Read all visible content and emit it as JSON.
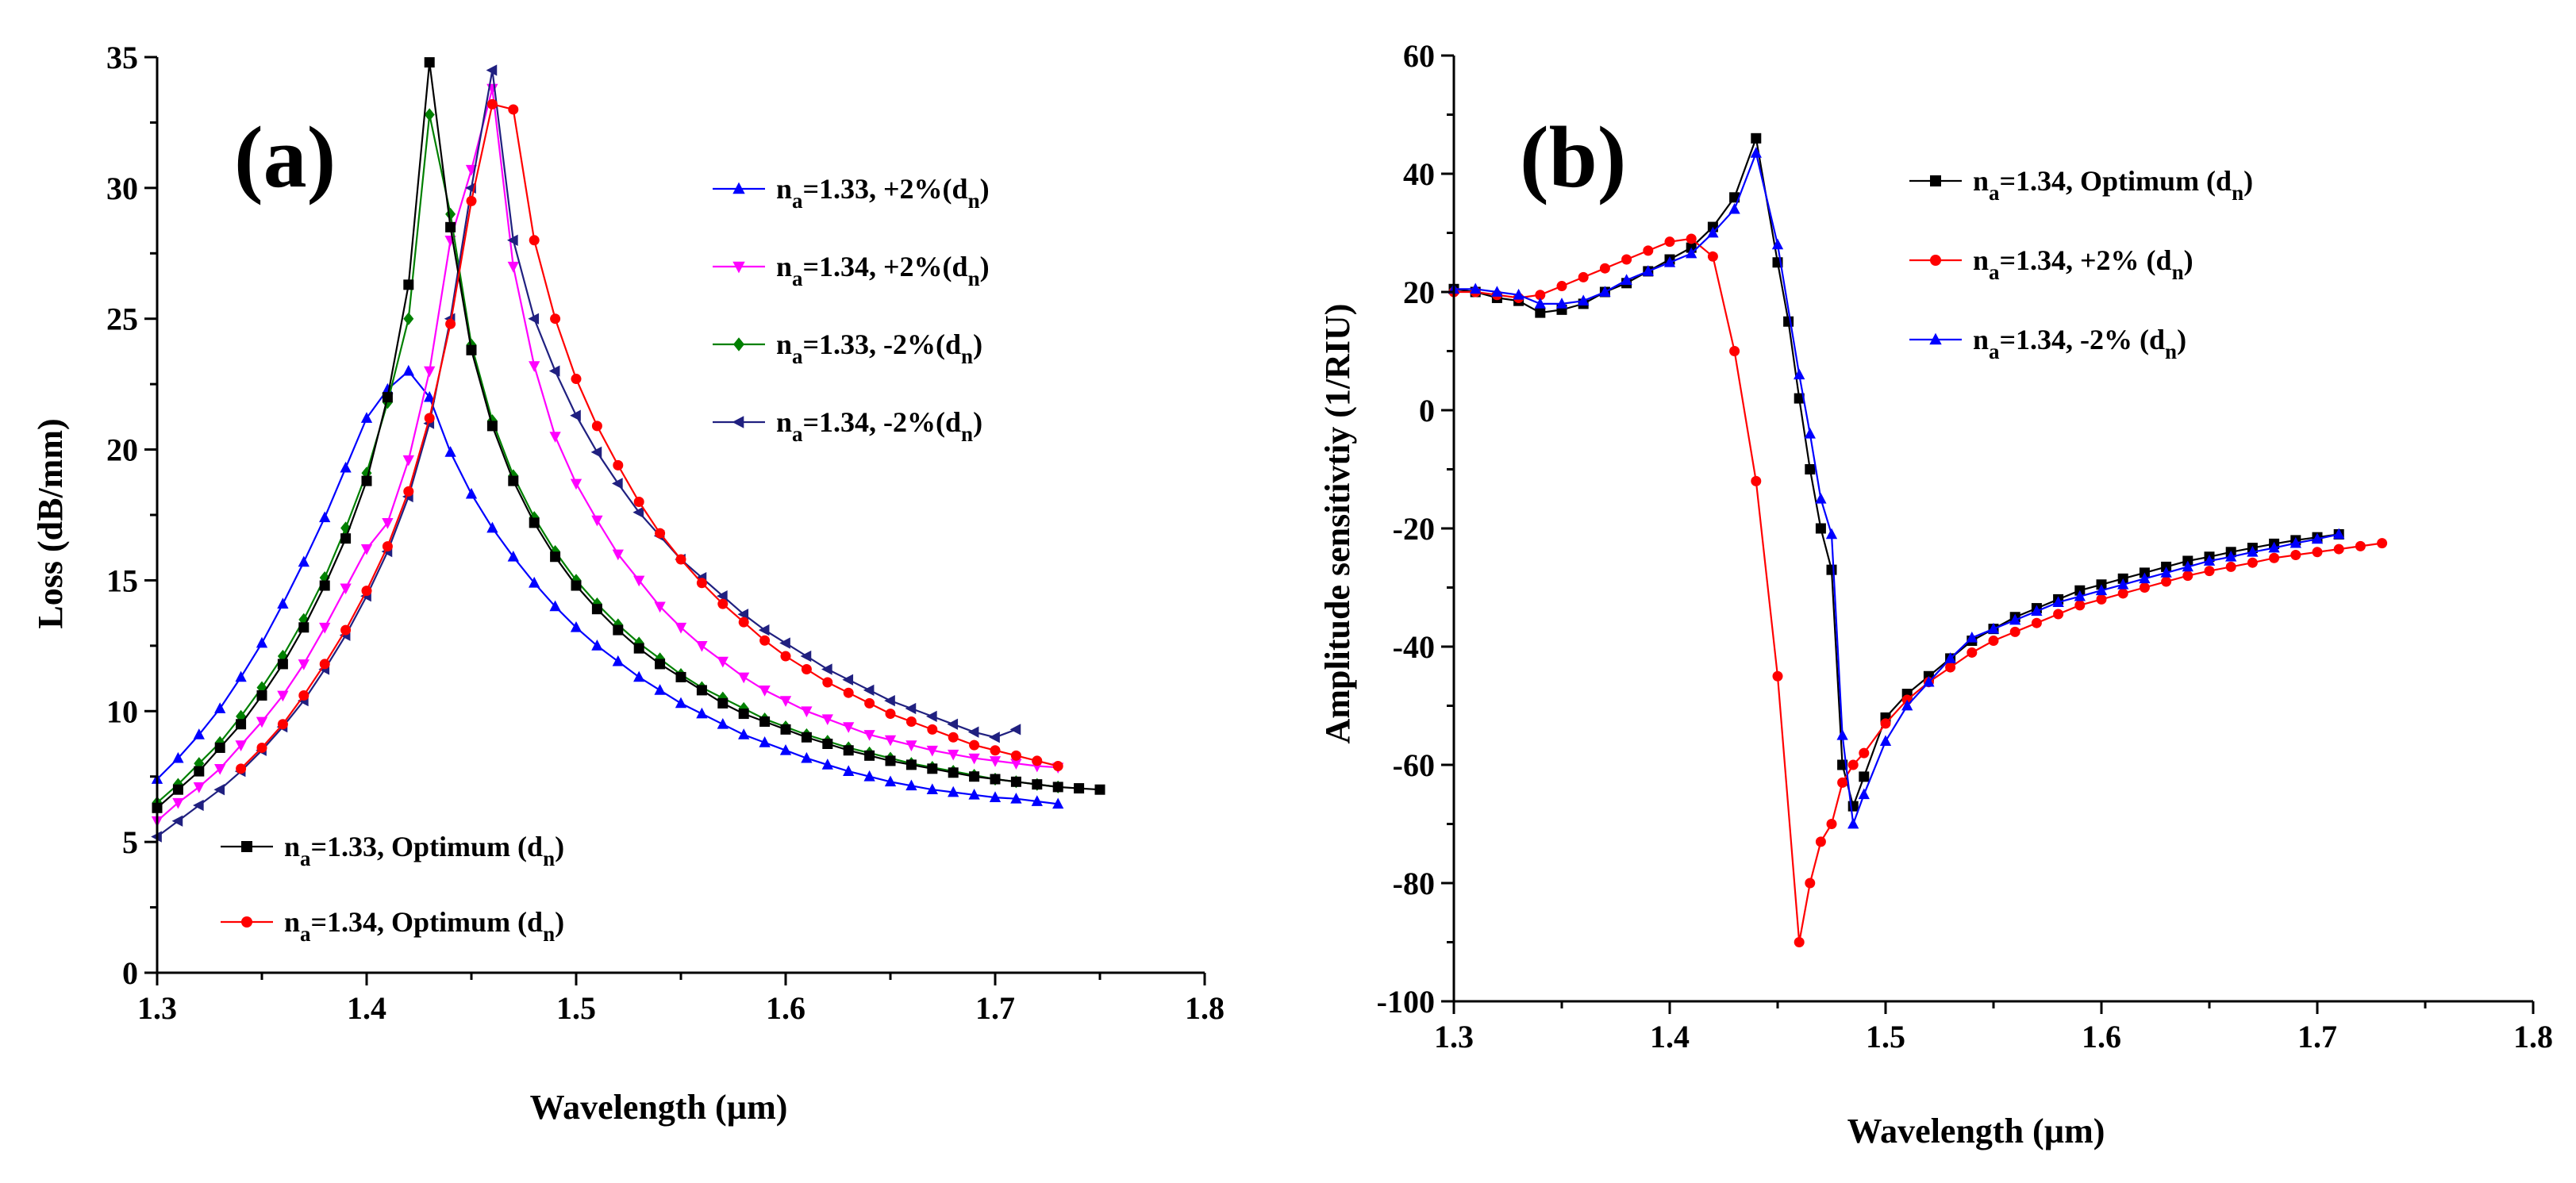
{
  "chart_data": [
    {
      "type": "line",
      "panel_label": "(a)",
      "xlabel": "Wavelength (µm)",
      "ylabel": "Loss (dB/mm)",
      "xlim": [
        1.3,
        1.8
      ],
      "ylim": [
        0,
        35
      ],
      "xticks": [
        1.3,
        1.4,
        1.5,
        1.6,
        1.7,
        1.8
      ],
      "xtick_labels": [
        "1.3",
        "1.4",
        "1.5",
        "1.6",
        "1.7",
        "1.8"
      ],
      "yticks": [
        0,
        5,
        10,
        15,
        20,
        25,
        30,
        35
      ],
      "ytick_labels": [
        "0",
        "5",
        "10",
        "15",
        "20",
        "25",
        "30",
        "35"
      ],
      "legend_top_location": "top-right",
      "legend_bottom_location": "bottom-left",
      "series": [
        {
          "name": "n_a=1.33, +2%(d_n)",
          "legend": {
            "pre": "n",
            "sub1": "a",
            "mid": "=1.33, +2%(d",
            "sub2": "n",
            "post": ")"
          },
          "color": "#0000ff",
          "marker": "triangle-up",
          "legend_group": "top",
          "x": [
            1.3,
            1.31,
            1.32,
            1.33,
            1.34,
            1.35,
            1.36,
            1.37,
            1.38,
            1.39,
            1.4,
            1.41,
            1.42,
            1.43,
            1.44,
            1.45,
            1.46,
            1.47,
            1.48,
            1.49,
            1.5,
            1.51,
            1.52,
            1.53,
            1.54,
            1.55,
            1.56,
            1.57,
            1.58,
            1.59,
            1.6,
            1.61,
            1.62,
            1.63,
            1.64,
            1.65,
            1.66,
            1.67,
            1.68,
            1.69,
            1.7,
            1.71,
            1.72,
            1.73
          ],
          "y": [
            7.4,
            8.2,
            9.1,
            10.1,
            11.3,
            12.6,
            14.1,
            15.7,
            17.4,
            19.3,
            21.2,
            22.3,
            23.0,
            22.0,
            19.9,
            18.3,
            17.0,
            15.9,
            14.9,
            14.0,
            13.2,
            12.5,
            11.9,
            11.3,
            10.8,
            10.3,
            9.9,
            9.5,
            9.1,
            8.8,
            8.5,
            8.2,
            7.95,
            7.7,
            7.5,
            7.3,
            7.15,
            7.0,
            6.9,
            6.8,
            6.7,
            6.65,
            6.55,
            6.45
          ]
        },
        {
          "name": "n_a=1.34, +2%(d_n)",
          "legend": {
            "pre": "n",
            "sub1": "a",
            "mid": "=1.34, +2%(d",
            "sub2": "n",
            "post": ")"
          },
          "color": "#ff00ff",
          "marker": "triangle-down",
          "legend_group": "top",
          "x": [
            1.3,
            1.31,
            1.32,
            1.33,
            1.34,
            1.35,
            1.36,
            1.37,
            1.38,
            1.39,
            1.4,
            1.41,
            1.42,
            1.43,
            1.44,
            1.45,
            1.46,
            1.47,
            1.48,
            1.49,
            1.5,
            1.51,
            1.52,
            1.53,
            1.54,
            1.55,
            1.56,
            1.57,
            1.58,
            1.59,
            1.6,
            1.61,
            1.62,
            1.63,
            1.64,
            1.65,
            1.66,
            1.67,
            1.68,
            1.69,
            1.7,
            1.71,
            1.72,
            1.73
          ],
          "y": [
            5.8,
            6.5,
            7.1,
            7.8,
            8.7,
            9.6,
            10.6,
            11.8,
            13.2,
            14.7,
            16.2,
            17.2,
            19.6,
            23.0,
            28.0,
            30.7,
            33.8,
            27.0,
            23.2,
            20.5,
            18.7,
            17.3,
            16.0,
            15.0,
            14.0,
            13.2,
            12.5,
            11.9,
            11.3,
            10.8,
            10.4,
            10.0,
            9.7,
            9.4,
            9.1,
            8.9,
            8.7,
            8.5,
            8.35,
            8.2,
            8.1,
            8.0,
            7.9,
            7.85
          ]
        },
        {
          "name": "n_a=1.33, -2%(d_n)",
          "legend": {
            "pre": "n",
            "sub1": "a",
            "mid": "=1.33, -2%(d",
            "sub2": "n",
            "post": ")"
          },
          "color": "#008000",
          "marker": "diamond",
          "legend_group": "top",
          "x": [
            1.3,
            1.31,
            1.32,
            1.33,
            1.34,
            1.35,
            1.36,
            1.37,
            1.38,
            1.39,
            1.4,
            1.41,
            1.42,
            1.43,
            1.44,
            1.45,
            1.46,
            1.47,
            1.48,
            1.49,
            1.5,
            1.51,
            1.52,
            1.53,
            1.54,
            1.55,
            1.56,
            1.57,
            1.58,
            1.59,
            1.6,
            1.61,
            1.62,
            1.63,
            1.64,
            1.65,
            1.66,
            1.67,
            1.68,
            1.69,
            1.7,
            1.71,
            1.72,
            1.73
          ],
          "y": [
            6.5,
            7.2,
            8.0,
            8.8,
            9.8,
            10.9,
            12.1,
            13.5,
            15.1,
            17.0,
            19.1,
            21.8,
            25.0,
            32.8,
            29.0,
            24.0,
            21.1,
            19.0,
            17.4,
            16.1,
            15.0,
            14.1,
            13.3,
            12.6,
            12.0,
            11.4,
            10.9,
            10.5,
            10.1,
            9.7,
            9.4,
            9.1,
            8.85,
            8.6,
            8.4,
            8.2,
            8.0,
            7.85,
            7.7,
            7.55,
            7.4,
            7.3,
            7.2,
            7.1
          ]
        },
        {
          "name": "n_a=1.34, -2%(d_n)",
          "legend": {
            "pre": "n",
            "sub1": "a",
            "mid": "=1.34, -2%(d",
            "sub2": "n",
            "post": ")"
          },
          "color": "#202080",
          "marker": "triangle-left",
          "legend_group": "top",
          "x": [
            1.3,
            1.31,
            1.32,
            1.33,
            1.34,
            1.35,
            1.36,
            1.37,
            1.38,
            1.39,
            1.4,
            1.41,
            1.42,
            1.43,
            1.44,
            1.45,
            1.46,
            1.47,
            1.48,
            1.49,
            1.5,
            1.51,
            1.52,
            1.53,
            1.54,
            1.55,
            1.56,
            1.57,
            1.58,
            1.59,
            1.6,
            1.61,
            1.62,
            1.63,
            1.64,
            1.65,
            1.66,
            1.67,
            1.68,
            1.69,
            1.7,
            1.71
          ],
          "y": [
            5.2,
            5.8,
            6.4,
            7.0,
            7.7,
            8.5,
            9.4,
            10.4,
            11.6,
            12.9,
            14.4,
            16.1,
            18.2,
            21.0,
            25.0,
            30.0,
            34.5,
            28.0,
            25.0,
            23.0,
            21.3,
            19.9,
            18.7,
            17.6,
            16.7,
            15.8,
            15.1,
            14.4,
            13.7,
            13.1,
            12.6,
            12.1,
            11.6,
            11.2,
            10.8,
            10.4,
            10.1,
            9.8,
            9.5,
            9.2,
            9.0,
            9.3
          ]
        },
        {
          "name": "n_a=1.33, Optimum (d_n)",
          "legend": {
            "pre": "n",
            "sub1": "a",
            "mid": "=1.33, Optimum (d",
            "sub2": "n",
            "post": ")"
          },
          "color": "#000000",
          "marker": "square",
          "legend_group": "bottom",
          "x": [
            1.3,
            1.31,
            1.32,
            1.33,
            1.34,
            1.35,
            1.36,
            1.37,
            1.38,
            1.39,
            1.4,
            1.41,
            1.42,
            1.43,
            1.44,
            1.45,
            1.46,
            1.47,
            1.48,
            1.49,
            1.5,
            1.51,
            1.52,
            1.53,
            1.54,
            1.55,
            1.56,
            1.57,
            1.58,
            1.59,
            1.6,
            1.61,
            1.62,
            1.63,
            1.64,
            1.65,
            1.66,
            1.67,
            1.68,
            1.69,
            1.7,
            1.71,
            1.72,
            1.73,
            1.74,
            1.75
          ],
          "y": [
            6.3,
            7.0,
            7.7,
            8.6,
            9.5,
            10.6,
            11.8,
            13.2,
            14.8,
            16.6,
            18.8,
            22.0,
            26.3,
            34.8,
            28.5,
            23.8,
            20.9,
            18.8,
            17.2,
            15.9,
            14.8,
            13.9,
            13.1,
            12.4,
            11.8,
            11.3,
            10.8,
            10.3,
            9.9,
            9.6,
            9.3,
            9.0,
            8.75,
            8.5,
            8.3,
            8.1,
            7.95,
            7.8,
            7.65,
            7.5,
            7.4,
            7.3,
            7.2,
            7.1,
            7.05,
            7.0
          ]
        },
        {
          "name": "n_a=1.34, Optimum (d_n)",
          "legend": {
            "pre": "n",
            "sub1": "a",
            "mid": "=1.34, Optimum (d",
            "sub2": "n",
            "post": ")"
          },
          "color": "#ff0000",
          "marker": "circle",
          "legend_group": "bottom",
          "x": [
            1.34,
            1.35,
            1.36,
            1.37,
            1.38,
            1.39,
            1.4,
            1.41,
            1.42,
            1.43,
            1.44,
            1.45,
            1.46,
            1.47,
            1.48,
            1.49,
            1.5,
            1.51,
            1.52,
            1.53,
            1.54,
            1.55,
            1.56,
            1.57,
            1.58,
            1.59,
            1.6,
            1.61,
            1.62,
            1.63,
            1.64,
            1.65,
            1.66,
            1.67,
            1.68,
            1.69,
            1.7,
            1.71,
            1.72,
            1.73
          ],
          "y": [
            7.8,
            8.6,
            9.5,
            10.6,
            11.8,
            13.1,
            14.6,
            16.3,
            18.4,
            21.2,
            24.8,
            29.5,
            33.2,
            33.0,
            28.0,
            25.0,
            22.7,
            20.9,
            19.4,
            18.0,
            16.8,
            15.8,
            14.9,
            14.1,
            13.4,
            12.7,
            12.1,
            11.6,
            11.1,
            10.7,
            10.3,
            9.9,
            9.6,
            9.3,
            9.0,
            8.7,
            8.5,
            8.3,
            8.1,
            7.9
          ]
        }
      ]
    },
    {
      "type": "line",
      "panel_label": "(b)",
      "xlabel": "Wavelength (µm)",
      "ylabel": "Amplitude sensitivtiy (1/RIU)",
      "xlim": [
        1.3,
        1.8
      ],
      "ylim": [
        -100,
        60
      ],
      "xticks": [
        1.3,
        1.4,
        1.5,
        1.6,
        1.7,
        1.8
      ],
      "xtick_labels": [
        "1.3",
        "1.4",
        "1.5",
        "1.6",
        "1.7",
        "1.8"
      ],
      "yticks": [
        -100,
        -80,
        -60,
        -40,
        -20,
        0,
        20,
        40,
        60
      ],
      "ytick_labels": [
        "-100",
        "-80",
        "-60",
        "-40",
        "-20",
        "0",
        "20",
        "40",
        "60"
      ],
      "legend_location": "top-right",
      "series": [
        {
          "name": "n_a=1.34, Optimum (d_n)",
          "legend": {
            "pre": "n",
            "sub1": "a",
            "mid": "=1.34, Optimum (d",
            "sub2": "n",
            "post": ")"
          },
          "color": "#000000",
          "marker": "square",
          "x": [
            1.3,
            1.31,
            1.32,
            1.33,
            1.34,
            1.35,
            1.36,
            1.37,
            1.38,
            1.39,
            1.4,
            1.41,
            1.42,
            1.43,
            1.44,
            1.45,
            1.455,
            1.46,
            1.465,
            1.47,
            1.475,
            1.48,
            1.485,
            1.49,
            1.5,
            1.51,
            1.52,
            1.53,
            1.54,
            1.55,
            1.56,
            1.57,
            1.58,
            1.59,
            1.6,
            1.61,
            1.62,
            1.63,
            1.64,
            1.65,
            1.66,
            1.67,
            1.68,
            1.69,
            1.7,
            1.71
          ],
          "y": [
            20.5,
            20.0,
            19.0,
            18.5,
            16.5,
            17.0,
            18.0,
            20.0,
            21.5,
            23.5,
            25.5,
            27.5,
            31.0,
            36.0,
            46.0,
            25.0,
            15.0,
            2.0,
            -10.0,
            -20.0,
            -27.0,
            -60.0,
            -67.0,
            -62.0,
            -52.0,
            -48.0,
            -45.0,
            -42.0,
            -39.0,
            -37.0,
            -35.0,
            -33.5,
            -32.0,
            -30.5,
            -29.5,
            -28.5,
            -27.5,
            -26.5,
            -25.5,
            -24.8,
            -24.0,
            -23.3,
            -22.6,
            -22.0,
            -21.5,
            -21.0
          ]
        },
        {
          "name": "n_a=1.34, +2% (d_n)",
          "legend": {
            "pre": "n",
            "sub1": "a",
            "mid": "=1.34, +2% (d",
            "sub2": "n",
            "post": ")"
          },
          "color": "#ff0000",
          "marker": "circle",
          "x": [
            1.3,
            1.31,
            1.32,
            1.33,
            1.34,
            1.35,
            1.36,
            1.37,
            1.38,
            1.39,
            1.4,
            1.41,
            1.42,
            1.43,
            1.44,
            1.45,
            1.46,
            1.465,
            1.47,
            1.475,
            1.48,
            1.485,
            1.49,
            1.5,
            1.51,
            1.52,
            1.53,
            1.54,
            1.55,
            1.56,
            1.57,
            1.58,
            1.59,
            1.6,
            1.61,
            1.62,
            1.63,
            1.64,
            1.65,
            1.66,
            1.67,
            1.68,
            1.69,
            1.7,
            1.71,
            1.72,
            1.73
          ],
          "y": [
            20.0,
            20.0,
            19.5,
            19.0,
            19.5,
            21.0,
            22.5,
            24.0,
            25.5,
            27.0,
            28.5,
            29.0,
            26.0,
            10.0,
            -12.0,
            -45.0,
            -90.0,
            -80.0,
            -73.0,
            -70.0,
            -63.0,
            -60.0,
            -58.0,
            -53.0,
            -49.0,
            -46.0,
            -43.5,
            -41.0,
            -39.0,
            -37.5,
            -36.0,
            -34.5,
            -33.0,
            -32.0,
            -31.0,
            -30.0,
            -29.0,
            -28.0,
            -27.2,
            -26.5,
            -25.8,
            -25.0,
            -24.5,
            -24.0,
            -23.5,
            -23.0,
            -22.5
          ]
        },
        {
          "name": "n_a=1.34, -2% (d_n)",
          "legend": {
            "pre": "n",
            "sub1": "a",
            "mid": "=1.34, -2% (d",
            "sub2": "n",
            "post": ")"
          },
          "color": "#0000ff",
          "marker": "triangle-up",
          "x": [
            1.3,
            1.31,
            1.32,
            1.33,
            1.34,
            1.35,
            1.36,
            1.37,
            1.38,
            1.39,
            1.4,
            1.41,
            1.42,
            1.43,
            1.44,
            1.45,
            1.46,
            1.465,
            1.47,
            1.475,
            1.48,
            1.485,
            1.49,
            1.5,
            1.51,
            1.52,
            1.53,
            1.54,
            1.55,
            1.56,
            1.57,
            1.58,
            1.59,
            1.6,
            1.61,
            1.62,
            1.63,
            1.64,
            1.65,
            1.66,
            1.67,
            1.68,
            1.69,
            1.7,
            1.71
          ],
          "y": [
            20.5,
            20.5,
            20.0,
            19.5,
            18.0,
            18.0,
            18.5,
            20.0,
            22.0,
            23.5,
            25.0,
            26.5,
            30.0,
            34.0,
            43.5,
            28.0,
            6.0,
            -4.0,
            -15.0,
            -21.0,
            -55.0,
            -70.0,
            -65.0,
            -56.0,
            -50.0,
            -46.0,
            -42.0,
            -38.5,
            -37.0,
            -35.5,
            -34.0,
            -32.5,
            -31.5,
            -30.5,
            -29.5,
            -28.5,
            -27.5,
            -26.5,
            -25.5,
            -24.8,
            -24.0,
            -23.3,
            -22.5,
            -21.8,
            -21.0
          ]
        }
      ]
    }
  ]
}
